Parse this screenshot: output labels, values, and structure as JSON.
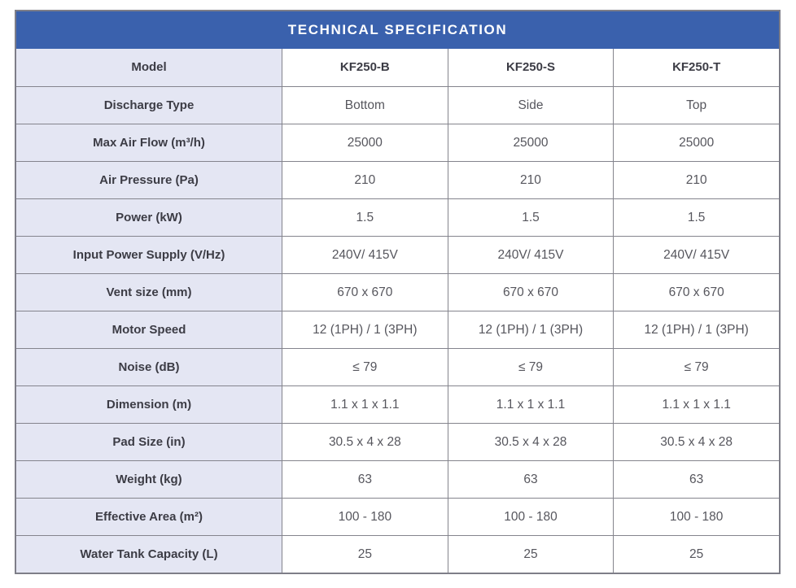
{
  "title": "TECHNICAL SPECIFICATION",
  "colors": {
    "header_blue": "#3a61ad",
    "label_background": "#e4e6f3",
    "border_gray": "#84848d",
    "label_text": "#3c3c45",
    "value_text": "#56565d",
    "title_text": "#ffffff"
  },
  "table": {
    "model_header": "Model",
    "models": [
      "KF250-B",
      "KF250-S",
      "KF250-T"
    ],
    "rows": [
      {
        "label": "Discharge Type",
        "values": [
          "Bottom",
          "Side",
          "Top"
        ]
      },
      {
        "label": "Max Air Flow (m³/h)",
        "values": [
          "25000",
          "25000",
          "25000"
        ]
      },
      {
        "label": "Air Pressure (Pa)",
        "values": [
          "210",
          "210",
          "210"
        ]
      },
      {
        "label": "Power (kW)",
        "values": [
          "1.5",
          "1.5",
          "1.5"
        ]
      },
      {
        "label": "Input Power Supply (V/Hz)",
        "values": [
          "240V/ 415V",
          "240V/ 415V",
          "240V/ 415V"
        ]
      },
      {
        "label": "Vent size (mm)",
        "values": [
          "670 x 670",
          "670 x 670",
          "670 x 670"
        ]
      },
      {
        "label": "Motor Speed",
        "values": [
          "12 (1PH) / 1 (3PH)",
          "12 (1PH) / 1 (3PH)",
          "12 (1PH) / 1 (3PH)"
        ]
      },
      {
        "label": "Noise (dB)",
        "values": [
          "≤ 79",
          "≤ 79",
          "≤ 79"
        ]
      },
      {
        "label": "Dimension (m)",
        "values": [
          "1.1 x 1 x 1.1",
          "1.1 x 1 x 1.1",
          "1.1 x 1 x 1.1"
        ]
      },
      {
        "label": "Pad Size (in)",
        "values": [
          "30.5 x 4 x 28",
          "30.5 x 4 x 28",
          "30.5 x 4 x 28"
        ]
      },
      {
        "label": "Weight (kg)",
        "values": [
          "63",
          "63",
          "63"
        ]
      },
      {
        "label": "Effective Area (m²)",
        "values": [
          "100 - 180",
          "100 - 180",
          "100 - 180"
        ]
      },
      {
        "label": "Water Tank Capacity (L)",
        "values": [
          "25",
          "25",
          "25"
        ]
      }
    ]
  }
}
